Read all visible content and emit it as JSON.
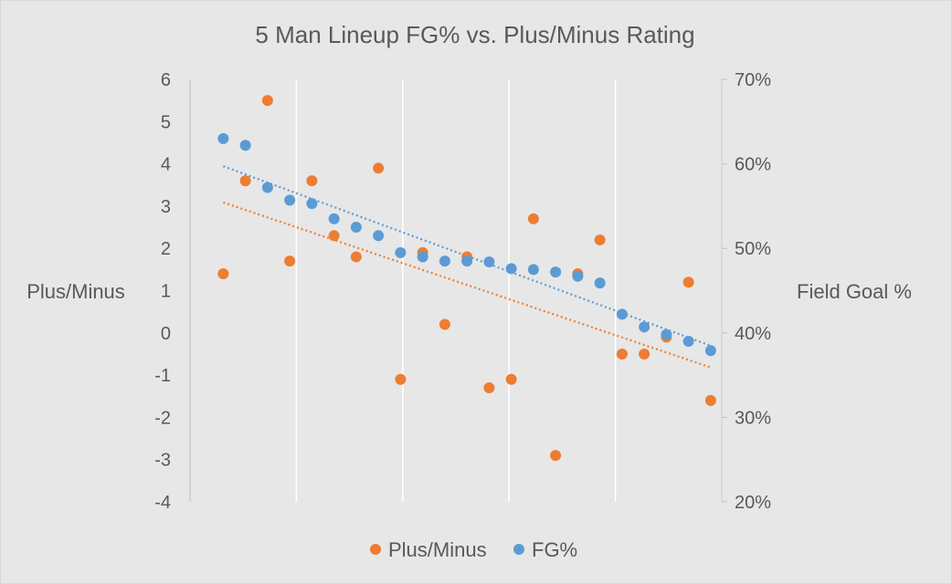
{
  "chart_data": {
    "type": "scatter",
    "title": "5 Man Lineup FG% vs. Plus/Minus Rating",
    "y_left_label": "Plus/Minus",
    "y_right_label": "Field Goal %",
    "y_left_range": [
      -4,
      6
    ],
    "y_left_ticks": [
      "6",
      "5",
      "4",
      "3",
      "2",
      "1",
      "0",
      "-1",
      "-2",
      "-3",
      "-4"
    ],
    "y_right_range": [
      20,
      70
    ],
    "y_right_ticks": [
      "70%",
      "60%",
      "50%",
      "40%",
      "30%",
      "20%"
    ],
    "x_range": [
      0,
      23
    ],
    "vertical_gridlines": true,
    "legend_position": "bottom",
    "series": [
      {
        "name": "Plus/Minus",
        "axis": "left",
        "color": "#ed7d31",
        "trendline": "linear",
        "x": [
          1,
          2,
          3,
          4,
          5,
          6,
          7,
          8,
          9,
          10,
          11,
          12,
          13,
          14,
          15,
          16,
          17,
          18,
          19,
          20,
          21,
          22,
          23
        ],
        "y": [
          1.4,
          3.6,
          5.5,
          1.7,
          3.6,
          2.3,
          1.8,
          3.9,
          -1.1,
          1.9,
          0.2,
          1.8,
          -1.3,
          -1.1,
          2.7,
          -2.9,
          1.4,
          2.2,
          -0.5,
          -0.5,
          -0.1,
          1.2,
          -1.6
        ]
      },
      {
        "name": "FG%",
        "axis": "right",
        "color": "#5b9bd5",
        "trendline": "linear",
        "x": [
          1,
          2,
          3,
          4,
          5,
          6,
          7,
          8,
          9,
          10,
          11,
          12,
          13,
          14,
          15,
          16,
          17,
          18,
          19,
          20,
          21,
          22,
          23
        ],
        "y": [
          63,
          62.2,
          57.2,
          55.7,
          55.3,
          53.5,
          52.5,
          51.5,
          49.5,
          49,
          48.5,
          48.5,
          48.4,
          47.6,
          47.5,
          47.2,
          46.7,
          45.9,
          42.2,
          40.7,
          39.8,
          39,
          37.9
        ]
      }
    ]
  }
}
